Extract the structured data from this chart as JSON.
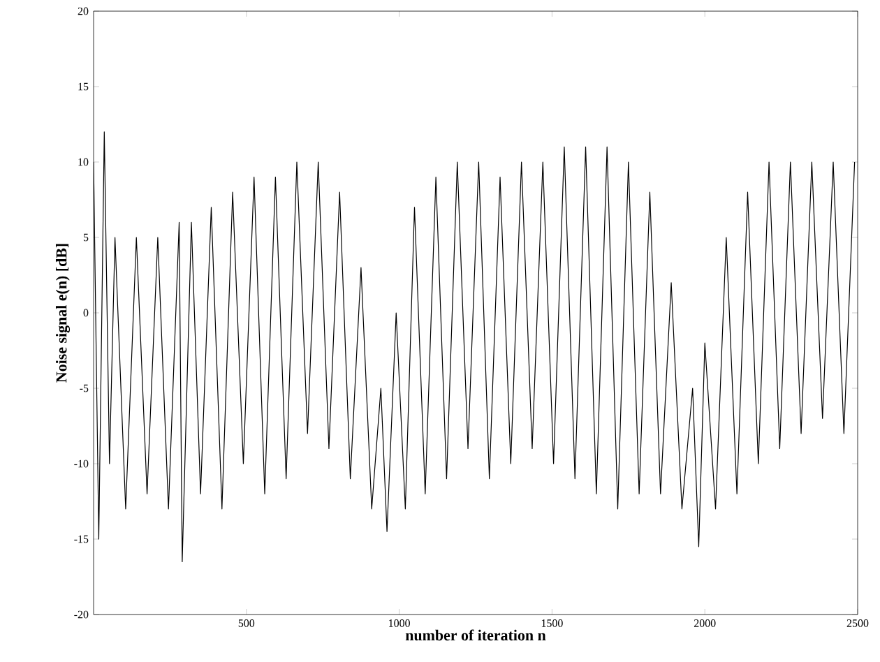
{
  "chart_data": {
    "type": "line",
    "xlabel": "number of iteration n",
    "ylabel": "Noise signal e(n) [dB]",
    "xlim": [
      0,
      2500
    ],
    "ylim": [
      -20,
      20
    ],
    "xticks": [
      500,
      1000,
      1500,
      2000,
      2500
    ],
    "yticks": [
      -20,
      -15,
      -10,
      -5,
      0,
      5,
      10,
      15,
      20
    ],
    "series": [
      {
        "color": "#000000",
        "x": [
          0,
          17,
          35,
          52,
          70,
          105,
          140,
          175,
          210,
          245,
          280,
          290,
          320,
          350,
          385,
          420,
          455,
          490,
          525,
          560,
          595,
          630,
          665,
          700,
          735,
          770,
          805,
          840,
          875,
          910,
          940,
          960,
          990,
          1020,
          1050,
          1085,
          1120,
          1155,
          1190,
          1225,
          1260,
          1295,
          1330,
          1365,
          1400,
          1435,
          1470,
          1505,
          1540,
          1575,
          1610,
          1645,
          1680,
          1715,
          1750,
          1785,
          1820,
          1855,
          1890,
          1925,
          1960,
          1980,
          2000,
          2035,
          2070,
          2105,
          2140,
          2175,
          2210,
          2245,
          2280,
          2315,
          2350,
          2385,
          2420,
          2455,
          2490
        ],
        "values": [
          10,
          -15,
          12,
          -10,
          5,
          -13,
          5,
          -12,
          5,
          -13,
          6,
          -16.5,
          6,
          -12,
          7,
          -13,
          8,
          -10,
          9,
          -12,
          9,
          -11,
          10,
          -8,
          10,
          -9,
          8,
          -11,
          3,
          -13,
          -5,
          -14.5,
          0,
          -13,
          7,
          -12,
          9,
          -11,
          10,
          -9,
          10,
          -11,
          9,
          -10,
          10,
          -9,
          10,
          -10,
          11,
          -11,
          11,
          -12,
          11,
          -13,
          10,
          -12,
          8,
          -12,
          2,
          -13,
          -5,
          -15.5,
          -2,
          -13,
          5,
          -12,
          8,
          -10,
          10,
          -9,
          10,
          -8,
          10,
          -7,
          10,
          -8,
          10
        ]
      }
    ]
  }
}
